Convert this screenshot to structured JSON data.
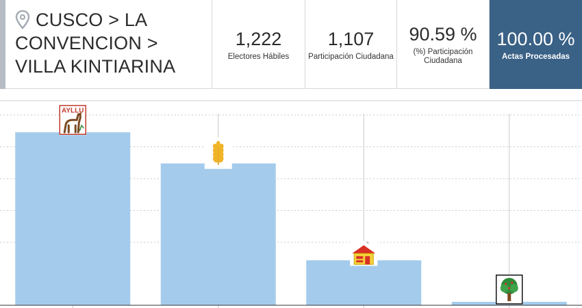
{
  "location": {
    "text": "CUSCO > LA CONVENCION > VILLA KINTIARINA",
    "icon": "location-pin-icon"
  },
  "stats": {
    "electores": {
      "value": "1,222",
      "label": "Electores Hábiles"
    },
    "participacion": {
      "value": "1,107",
      "label": "Participación Ciudadana"
    },
    "porcentaje": {
      "value": "90.59 %",
      "label": "(%) Participación Ciudadana"
    },
    "actas": {
      "value": "100.00 %",
      "label": "Actas Procesadas"
    }
  },
  "colors": {
    "bar": "#a4cbec",
    "actas_bg": "#3a6186",
    "grid": "#c8c8c8"
  },
  "chart_data": {
    "type": "bar",
    "categories": [
      "",
      "",
      "",
      ""
    ],
    "values": [
      100,
      82,
      26,
      2
    ],
    "ylim": [
      0,
      110
    ],
    "grid": true,
    "logos": [
      {
        "icon": "ayllu-alpaca-logo",
        "text": "AYLLU"
      },
      {
        "icon": "wheat-logo",
        "text": ""
      },
      {
        "icon": "house-logo",
        "text": ""
      },
      {
        "icon": "tree-logo",
        "text": ""
      }
    ]
  }
}
